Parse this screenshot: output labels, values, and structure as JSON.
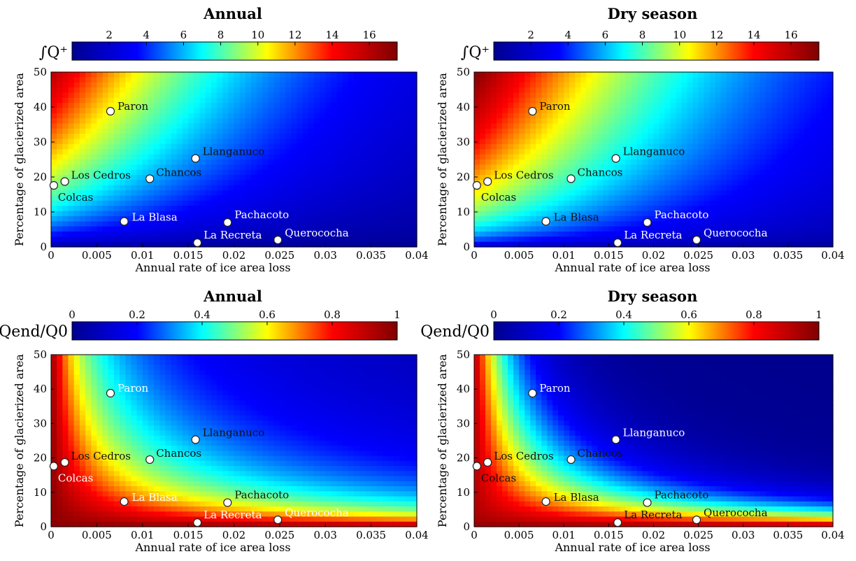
{
  "colors": {
    "jet": [
      "#00008f",
      "#0000ff",
      "#00ffff",
      "#ffff00",
      "#ff0000",
      "#800000"
    ],
    "marker_fill": "#ffffff",
    "marker_stroke": "#222222",
    "label_light": "#ffffff",
    "label_dark": "#111111"
  },
  "chart_data": [
    {
      "type": "heatmap",
      "title": "Annual",
      "colorbar_label": "∫Q⁺",
      "colorbar_ticks": [
        "2",
        "4",
        "6",
        "8",
        "10",
        "12",
        "14",
        "16"
      ],
      "colorbar_range": [
        0,
        17.5
      ],
      "xlabel": "Annual rate of ice area loss",
      "ylabel": "Percentage of glacierized area",
      "x_ticks": [
        "0",
        "0.005",
        "0.01",
        "0.015",
        "0.02",
        "0.025",
        "0.03",
        "0.035",
        "0.04"
      ],
      "y_ticks": [
        "0",
        "10",
        "20",
        "30",
        "40",
        "50"
      ],
      "xlim": [
        0,
        0.04
      ],
      "ylim": [
        0,
        50
      ],
      "points": [
        {
          "name": "Paron",
          "x": 0.0065,
          "y": 38.8,
          "label_color": "dark"
        },
        {
          "name": "Llanganuco",
          "x": 0.0158,
          "y": 25.3,
          "label_color": "dark"
        },
        {
          "name": "Los Cedros",
          "x": 0.0015,
          "y": 18.7,
          "label_color": "dark"
        },
        {
          "name": "Chancos",
          "x": 0.0108,
          "y": 19.5,
          "label_color": "dark"
        },
        {
          "name": "Colcas",
          "x": 0.0003,
          "y": 17.6,
          "label_color": "dark"
        },
        {
          "name": "La Blasa",
          "x": 0.008,
          "y": 7.3,
          "label_color": "light"
        },
        {
          "name": "Pachacoto",
          "x": 0.0193,
          "y": 7.0,
          "label_color": "light"
        },
        {
          "name": "La Recreta",
          "x": 0.016,
          "y": 1.2,
          "label_color": "light"
        },
        {
          "name": "Querococha",
          "x": 0.0248,
          "y": 2.0,
          "label_color": "light"
        }
      ]
    },
    {
      "type": "heatmap",
      "title": "Dry season",
      "colorbar_label": "∫Q⁺",
      "colorbar_ticks": [
        "2",
        "4",
        "6",
        "8",
        "10",
        "12",
        "14",
        "16"
      ],
      "colorbar_range": [
        0,
        17.5
      ],
      "xlabel": "Annual rate of ice area loss",
      "ylabel": "Percentage of glacierized area",
      "x_ticks": [
        "0",
        "0.005",
        "0.01",
        "0.015",
        "0.02",
        "0.025",
        "0.03",
        "0.035",
        "0.04"
      ],
      "y_ticks": [
        "0",
        "10",
        "20",
        "30",
        "40",
        "50"
      ],
      "xlim": [
        0,
        0.04
      ],
      "ylim": [
        0,
        50
      ],
      "points": [
        {
          "name": "Paron",
          "x": 0.0065,
          "y": 38.8,
          "label_color": "dark"
        },
        {
          "name": "Llanganuco",
          "x": 0.0158,
          "y": 25.3,
          "label_color": "dark"
        },
        {
          "name": "Los Cedros",
          "x": 0.0015,
          "y": 18.7,
          "label_color": "dark"
        },
        {
          "name": "Chancos",
          "x": 0.0108,
          "y": 19.5,
          "label_color": "dark"
        },
        {
          "name": "Colcas",
          "x": 0.0003,
          "y": 17.6,
          "label_color": "dark"
        },
        {
          "name": "La Blasa",
          "x": 0.008,
          "y": 7.3,
          "label_color": "dark"
        },
        {
          "name": "Pachacoto",
          "x": 0.0193,
          "y": 7.0,
          "label_color": "light"
        },
        {
          "name": "La Recreta",
          "x": 0.016,
          "y": 1.2,
          "label_color": "light"
        },
        {
          "name": "Querococha",
          "x": 0.0248,
          "y": 2.0,
          "label_color": "light"
        }
      ]
    },
    {
      "type": "heatmap",
      "title": "Annual",
      "colorbar_label": "Qend/Q0",
      "colorbar_ticks": [
        "0",
        "0.2",
        "0.4",
        "0.6",
        "0.8",
        "1"
      ],
      "colorbar_range": [
        0,
        1
      ],
      "xlabel": "Annual rate of ice area loss",
      "ylabel": "Percentage of glacierized area",
      "x_ticks": [
        "0",
        "0.005",
        "0.01",
        "0.015",
        "0.02",
        "0.025",
        "0.03",
        "0.035",
        "0.04"
      ],
      "y_ticks": [
        "0",
        "10",
        "20",
        "30",
        "40",
        "50"
      ],
      "xlim": [
        0,
        0.04
      ],
      "ylim": [
        0,
        50
      ],
      "points": [
        {
          "name": "Paron",
          "x": 0.0065,
          "y": 38.8,
          "label_color": "light"
        },
        {
          "name": "Llanganuco",
          "x": 0.0158,
          "y": 25.3,
          "label_color": "dark"
        },
        {
          "name": "Los Cedros",
          "x": 0.0015,
          "y": 18.7,
          "label_color": "dark"
        },
        {
          "name": "Chancos",
          "x": 0.0108,
          "y": 19.5,
          "label_color": "dark"
        },
        {
          "name": "Colcas",
          "x": 0.0003,
          "y": 17.6,
          "label_color": "light"
        },
        {
          "name": "La Blasa",
          "x": 0.008,
          "y": 7.3,
          "label_color": "light"
        },
        {
          "name": "Pachacoto",
          "x": 0.0193,
          "y": 7.0,
          "label_color": "dark"
        },
        {
          "name": "La Recreta",
          "x": 0.016,
          "y": 1.2,
          "label_color": "light"
        },
        {
          "name": "Querococha",
          "x": 0.0248,
          "y": 2.0,
          "label_color": "light"
        }
      ]
    },
    {
      "type": "heatmap",
      "title": "Dry season",
      "colorbar_label": "Qend/Q0",
      "colorbar_ticks": [
        "0",
        "0.2",
        "0.4",
        "0.6",
        "0.8",
        "1"
      ],
      "colorbar_range": [
        0,
        1
      ],
      "xlabel": "Annual rate of ice area loss",
      "ylabel": "Percentage of glacierized area",
      "x_ticks": [
        "0",
        "0.005",
        "0.01",
        "0.015",
        "0.02",
        "0.025",
        "0.03",
        "0.035",
        "0.04"
      ],
      "y_ticks": [
        "0",
        "10",
        "20",
        "30",
        "40",
        "50"
      ],
      "xlim": [
        0,
        0.04
      ],
      "ylim": [
        0,
        50
      ],
      "points": [
        {
          "name": "Paron",
          "x": 0.0065,
          "y": 38.8,
          "label_color": "light"
        },
        {
          "name": "Llanganuco",
          "x": 0.0158,
          "y": 25.3,
          "label_color": "light"
        },
        {
          "name": "Los Cedros",
          "x": 0.0015,
          "y": 18.7,
          "label_color": "dark"
        },
        {
          "name": "Chancos",
          "x": 0.0108,
          "y": 19.5,
          "label_color": "dark"
        },
        {
          "name": "Colcas",
          "x": 0.0003,
          "y": 17.6,
          "label_color": "dark"
        },
        {
          "name": "La Blasa",
          "x": 0.008,
          "y": 7.3,
          "label_color": "dark"
        },
        {
          "name": "Pachacoto",
          "x": 0.0193,
          "y": 7.0,
          "label_color": "dark"
        },
        {
          "name": "La Recreta",
          "x": 0.016,
          "y": 1.2,
          "label_color": "dark"
        },
        {
          "name": "Querococha",
          "x": 0.0248,
          "y": 2.0,
          "label_color": "dark"
        }
      ]
    }
  ]
}
